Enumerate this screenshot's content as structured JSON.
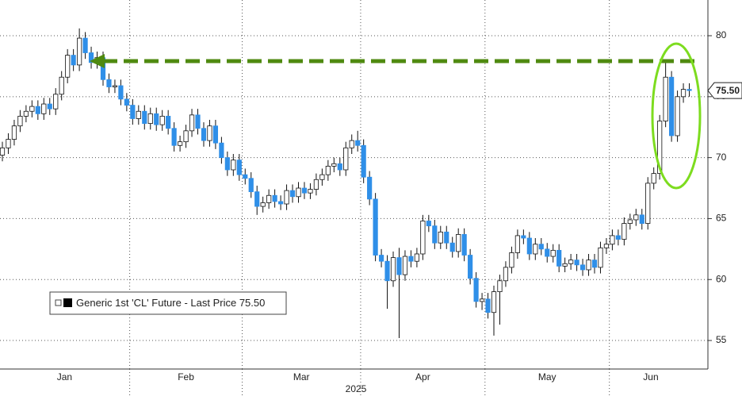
{
  "chart_data": {
    "type": "candlestick",
    "legend": "Generic 1st 'CL' Future - Last Price 75.50",
    "xlabel": "2025",
    "last_price": {
      "value": 75.5,
      "label": "75.50"
    },
    "up_color": "#ffffff",
    "down_color": "#2f8fe8",
    "ylim": [
      52.66,
      82.93
    ],
    "yticks": [
      55,
      60,
      65,
      70,
      75,
      80
    ],
    "grid": true,
    "xticks": [
      {
        "value": 0,
        "label": "Jan"
      },
      {
        "value": 22,
        "label": "Feb"
      },
      {
        "value": 41,
        "label": "Mar"
      },
      {
        "value": 61,
        "label": "Apr"
      },
      {
        "value": 82,
        "label": "May"
      },
      {
        "value": 103,
        "label": "Jun"
      }
    ],
    "open": [
      70.2,
      70.8,
      71.5,
      72.6,
      73.4,
      73.8,
      74.2,
      73.6,
      74.4,
      74.0,
      75.2,
      76.6,
      78.4,
      77.6,
      79.8,
      78.6,
      77.8,
      78.2,
      76.4,
      75.8,
      75.9,
      74.8,
      74.3,
      73.2,
      73.8,
      72.8,
      73.6,
      72.7,
      73.4,
      72.4,
      71.0,
      71.3,
      72.2,
      73.5,
      72.4,
      71.4,
      72.6,
      71.2,
      70.0,
      69.0,
      69.8,
      68.6,
      68.3,
      67.2,
      66.0,
      66.3,
      66.9,
      66.4,
      66.2,
      67.3,
      66.8,
      67.5,
      67.1,
      67.4,
      68.2,
      68.6,
      69.3,
      69.5,
      69.0,
      70.8,
      71.4,
      71.0,
      68.4,
      66.6,
      62.0,
      61.5,
      59.9,
      61.8,
      60.4,
      61.9,
      61.5,
      62.1,
      64.8,
      64.4,
      63.0,
      63.9,
      63.0,
      62.3,
      63.7,
      62.0,
      60.1,
      58.2,
      58.4,
      57.3,
      59.0,
      59.9,
      61.0,
      62.2,
      63.6,
      63.4,
      62.1,
      62.9,
      62.5,
      61.9,
      62.4,
      61.1,
      61.3,
      61.6,
      61.2,
      60.8,
      61.6,
      61.0,
      62.6,
      62.9,
      63.6,
      63.3,
      64.6,
      64.9,
      65.3,
      64.6,
      67.9,
      68.7,
      73.0,
      76.6,
      71.8,
      75.0,
      75.6
    ],
    "high": [
      71.3,
      72.0,
      73.1,
      73.9,
      74.3,
      74.7,
      74.7,
      74.9,
      74.9,
      75.7,
      77.1,
      78.9,
      78.9,
      80.6,
      80.3,
      79.1,
      78.7,
      78.7,
      76.9,
      76.4,
      76.4,
      75.3,
      74.8,
      74.3,
      74.3,
      74.1,
      74.1,
      73.9,
      73.9,
      72.9,
      71.8,
      72.7,
      74.0,
      74.0,
      72.9,
      73.1,
      73.1,
      71.7,
      70.5,
      70.3,
      70.3,
      69.1,
      68.8,
      67.7,
      66.8,
      67.4,
      67.4,
      66.9,
      67.8,
      67.8,
      68.0,
      68.0,
      67.9,
      68.7,
      69.1,
      69.8,
      70.0,
      70.0,
      71.3,
      71.9,
      72.2,
      71.5,
      68.9,
      67.1,
      62.5,
      62.0,
      62.3,
      62.6,
      62.4,
      62.4,
      62.6,
      65.3,
      65.3,
      64.9,
      64.4,
      64.4,
      63.5,
      64.2,
      64.2,
      62.5,
      60.6,
      58.9,
      58.9,
      59.5,
      60.4,
      61.5,
      62.7,
      64.1,
      64.1,
      63.9,
      63.4,
      63.4,
      63.0,
      62.9,
      62.9,
      61.8,
      62.1,
      62.1,
      61.7,
      62.1,
      62.1,
      63.1,
      63.4,
      64.1,
      64.1,
      65.1,
      65.4,
      65.8,
      65.8,
      68.4,
      69.2,
      73.5,
      77.8,
      77.1,
      75.5,
      76.1,
      76.1
    ],
    "low": [
      69.7,
      70.3,
      71.0,
      72.1,
      72.9,
      73.3,
      73.1,
      73.1,
      73.5,
      73.5,
      74.7,
      76.1,
      77.1,
      77.1,
      78.1,
      77.3,
      77.3,
      75.9,
      75.3,
      75.3,
      74.3,
      73.8,
      72.7,
      72.7,
      72.3,
      72.3,
      72.2,
      72.2,
      71.9,
      70.5,
      70.5,
      70.8,
      71.7,
      71.9,
      70.9,
      70.9,
      70.7,
      69.5,
      68.5,
      68.5,
      68.1,
      67.8,
      66.7,
      65.3,
      65.5,
      65.8,
      65.9,
      65.7,
      65.7,
      66.3,
      66.3,
      66.6,
      66.6,
      66.9,
      67.7,
      68.1,
      68.8,
      68.5,
      68.5,
      70.3,
      70.5,
      67.9,
      66.1,
      61.5,
      61.0,
      57.6,
      59.4,
      55.2,
      59.9,
      61.0,
      61.0,
      61.6,
      63.9,
      62.5,
      62.5,
      62.5,
      61.8,
      61.8,
      61.5,
      59.6,
      57.7,
      57.5,
      56.8,
      55.4,
      56.3,
      59.4,
      60.5,
      61.7,
      62.9,
      61.6,
      61.6,
      62.0,
      61.4,
      61.4,
      60.6,
      60.6,
      60.8,
      60.7,
      60.3,
      60.3,
      60.5,
      60.5,
      62.1,
      62.4,
      62.8,
      62.8,
      64.1,
      64.4,
      64.1,
      64.1,
      67.4,
      68.2,
      72.5,
      71.3,
      71.3,
      74.5,
      75.0
    ],
    "close": [
      70.8,
      71.5,
      72.6,
      73.4,
      73.8,
      74.2,
      73.6,
      74.4,
      74.0,
      75.2,
      76.6,
      78.4,
      77.6,
      79.8,
      78.6,
      77.8,
      78.2,
      76.4,
      75.8,
      75.9,
      74.8,
      74.3,
      73.2,
      73.8,
      72.8,
      73.6,
      72.7,
      73.4,
      72.4,
      71.0,
      71.3,
      72.2,
      73.5,
      72.4,
      71.4,
      72.6,
      71.2,
      70.0,
      69.0,
      69.8,
      68.6,
      68.3,
      67.2,
      66.0,
      66.3,
      66.9,
      66.4,
      66.2,
      67.3,
      66.8,
      67.5,
      67.1,
      67.4,
      68.2,
      68.6,
      69.3,
      69.5,
      69.0,
      70.8,
      71.4,
      71.0,
      68.4,
      66.6,
      62.0,
      61.5,
      59.9,
      61.8,
      60.4,
      61.9,
      61.5,
      62.1,
      64.8,
      64.4,
      63.0,
      63.9,
      63.0,
      62.3,
      63.7,
      62.0,
      60.1,
      58.2,
      58.4,
      57.3,
      59.0,
      59.9,
      61.0,
      62.2,
      63.6,
      63.4,
      62.1,
      62.9,
      62.5,
      61.9,
      62.4,
      61.1,
      61.3,
      61.6,
      61.2,
      60.8,
      61.6,
      61.0,
      62.6,
      62.9,
      63.6,
      63.3,
      64.6,
      64.9,
      65.3,
      64.6,
      67.9,
      68.7,
      73.0,
      76.6,
      71.8,
      75.0,
      75.6,
      75.5
    ]
  }
}
